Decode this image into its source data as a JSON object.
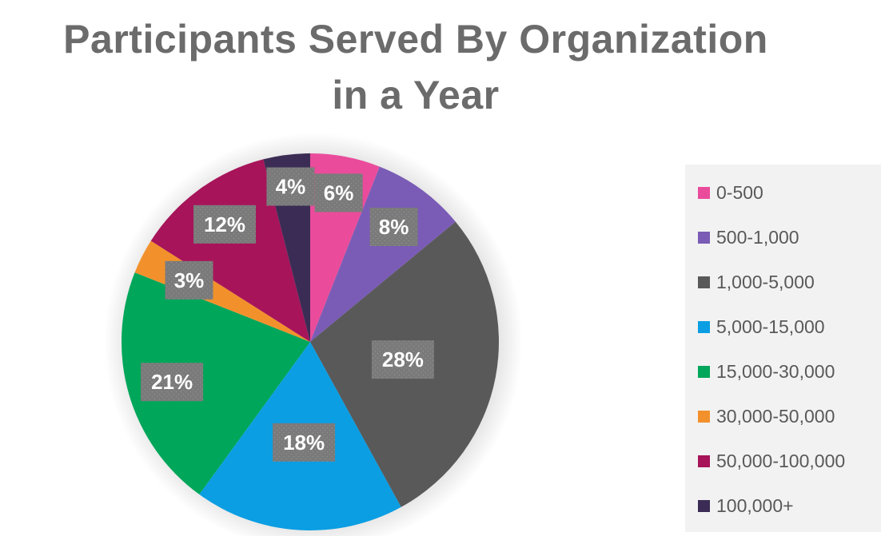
{
  "chart_data": {
    "type": "pie",
    "title": "Participants Served By Organization in a Year",
    "title_lines": [
      "Participants Served By Organization",
      "in a Year"
    ],
    "categories": [
      "0-500",
      "500-1,000",
      "1,000-5,000",
      "5,000-15,000",
      "15,000-30,000",
      "30,000-50,000",
      "50,000-100,000",
      "100,000+"
    ],
    "values": [
      6,
      8,
      28,
      18,
      21,
      3,
      12,
      4
    ],
    "data_labels": [
      "6%",
      "8%",
      "28%",
      "18%",
      "21%",
      "3%",
      "12%",
      "4%"
    ],
    "colors": [
      "#ea4c9b",
      "#7a5cb6",
      "#595959",
      "#0b9ee3",
      "#00a65a",
      "#f2912c",
      "#a7145a",
      "#3b2c55"
    ],
    "unit": "%",
    "legend_position": "right",
    "start": "12 o'clock",
    "direction": "clockwise"
  }
}
